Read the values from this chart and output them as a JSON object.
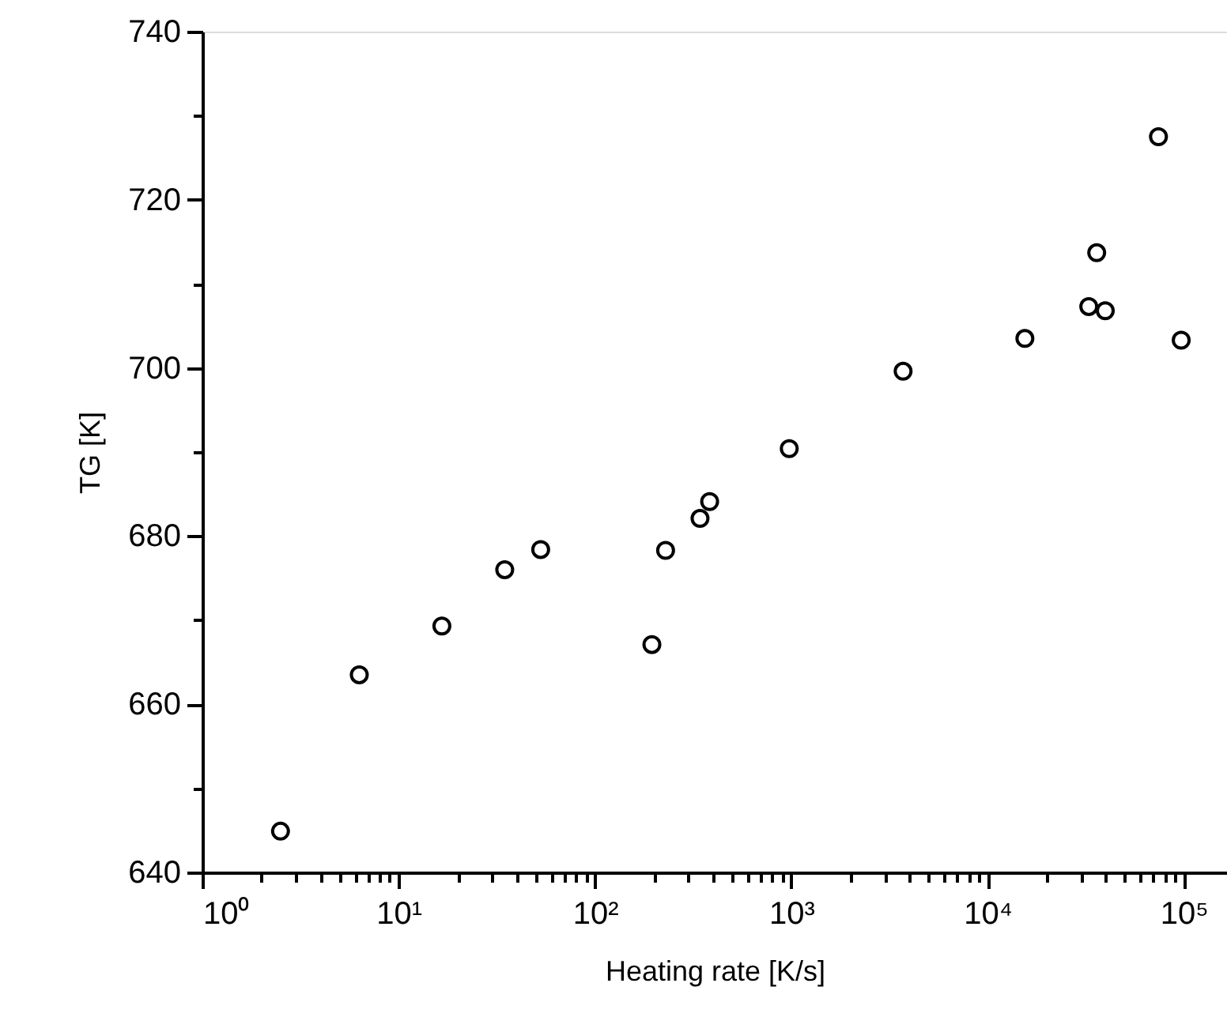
{
  "chart_data": {
    "type": "scatter",
    "xlabel": "Heating rate [K/s]",
    "ylabel": "TG [K]",
    "x": [
      2.5,
      6.3,
      16.6,
      34.7,
      52.9,
      195,
      229,
      343,
      384,
      977,
      3715,
      15500,
      32800,
      39800,
      36000,
      74300,
      97000
    ],
    "series": [
      {
        "color": "#000000",
        "values": [
          644.9,
          663.5,
          669.3,
          676.0,
          678.4,
          667.1,
          678.3,
          682.1,
          684.1,
          690.4,
          699.6,
          703.5,
          707.3,
          706.8,
          713.7,
          727.5,
          703.3
        ]
      }
    ],
    "log": "x",
    "marker": "circle",
    "grid": false,
    "xlim": [
      1,
      166000
    ],
    "ylim": [
      640,
      740
    ],
    "xticks": [
      {
        "value": 1,
        "label": "10⁰"
      },
      {
        "value": 2,
        "label": null
      },
      {
        "value": 3,
        "label": null
      },
      {
        "value": 4,
        "label": null
      },
      {
        "value": 5,
        "label": null
      },
      {
        "value": 6,
        "label": null
      },
      {
        "value": 7,
        "label": null
      },
      {
        "value": 8,
        "label": null
      },
      {
        "value": 9,
        "label": null
      },
      {
        "value": 10,
        "label": "10¹"
      },
      {
        "value": 20,
        "label": null
      },
      {
        "value": 30,
        "label": null
      },
      {
        "value": 40,
        "label": null
      },
      {
        "value": 50,
        "label": null
      },
      {
        "value": 60,
        "label": null
      },
      {
        "value": 70,
        "label": null
      },
      {
        "value": 80,
        "label": null
      },
      {
        "value": 90,
        "label": null
      },
      {
        "value": 100,
        "label": "10²"
      },
      {
        "value": 200,
        "label": null
      },
      {
        "value": 300,
        "label": null
      },
      {
        "value": 400,
        "label": null
      },
      {
        "value": 500,
        "label": null
      },
      {
        "value": 600,
        "label": null
      },
      {
        "value": 700,
        "label": null
      },
      {
        "value": 800,
        "label": null
      },
      {
        "value": 900,
        "label": null
      },
      {
        "value": 1000,
        "label": "10³"
      },
      {
        "value": 2000,
        "label": null
      },
      {
        "value": 3000,
        "label": null
      },
      {
        "value": 4000,
        "label": null
      },
      {
        "value": 5000,
        "label": null
      },
      {
        "value": 6000,
        "label": null
      },
      {
        "value": 7000,
        "label": null
      },
      {
        "value": 8000,
        "label": null
      },
      {
        "value": 9000,
        "label": null
      },
      {
        "value": 10000,
        "label": "10⁴"
      },
      {
        "value": 20000,
        "label": null
      },
      {
        "value": 30000,
        "label": null
      },
      {
        "value": 40000,
        "label": null
      },
      {
        "value": 50000,
        "label": null
      },
      {
        "value": 60000,
        "label": null
      },
      {
        "value": 70000,
        "label": null
      },
      {
        "value": 80000,
        "label": null
      },
      {
        "value": 90000,
        "label": null
      },
      {
        "value": 100000,
        "label": "10⁵"
      }
    ],
    "yticks": [
      640,
      {
        "value": 650,
        "label": null
      },
      660,
      {
        "value": 670,
        "label": null
      },
      680,
      {
        "value": 690,
        "label": null
      },
      700,
      {
        "value": 710,
        "label": null
      },
      720,
      {
        "value": 730,
        "label": null
      },
      740
    ]
  }
}
